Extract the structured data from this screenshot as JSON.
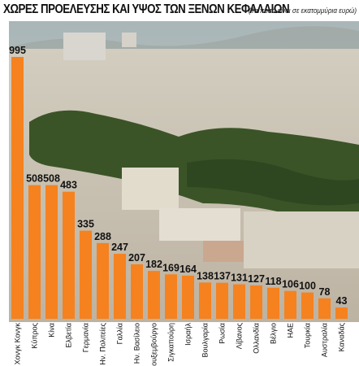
{
  "header": {
    "title": "ΧΩΡΕΣ ΠΡΟΕΛΕΥΣΗΣ ΚΑΙ ΥΨΟΣ ΤΩΝ ΞΕΝΩΝ ΚΕΦΑΛΑΙΩΝ",
    "note": "(Τα ποσά είναι σε εκατομμύρια ευρώ)"
  },
  "colors": {
    "bar": "#f5821f",
    "sky": "#b9c4c3",
    "city": "#cfc7b8",
    "trees": "#3b5427"
  },
  "chart_data": {
    "type": "bar",
    "title": "ΧΩΡΕΣ ΠΡΟΕΛΕΥΣΗΣ ΚΑΙ ΥΨΟΣ ΤΩΝ ΞΕΝΩΝ ΚΕΦΑΛΑΙΩΝ",
    "ylabel": "",
    "xlabel": "",
    "ylim": [
      0,
      1000
    ],
    "grid": false,
    "legend": "none",
    "categories": [
      "Χονγκ Κονγκ",
      "Κύπρος",
      "Κίνα",
      "Ελβετία",
      "Γερμανία",
      "Ην. Πολιτείες",
      "Γαλλία",
      "Ην. Βασίλειο",
      "Λουξεμβούργο",
      "Σιγκαπούρη",
      "Ισραήλ",
      "Βουλγαρία",
      "Ρωσία",
      "Λίβανος",
      "Ολλανδία",
      "Βέλγιο",
      "ΗΑΕ",
      "Τουρκία",
      "Αυστραλία",
      "Καναδάς"
    ],
    "values": [
      995,
      508,
      508,
      483,
      335,
      288,
      247,
      207,
      182,
      169,
      164,
      138,
      137,
      131,
      127,
      118,
      106,
      100,
      78,
      43
    ]
  }
}
